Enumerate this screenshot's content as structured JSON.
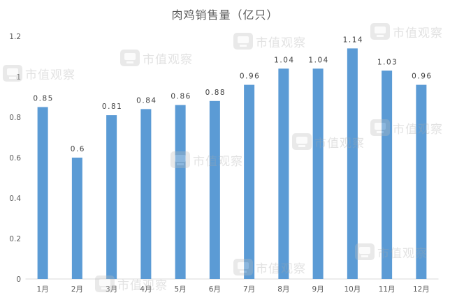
{
  "chart_data": {
    "type": "bar",
    "title": "肉鸡销售量（亿只）",
    "categories": [
      "1月",
      "2月",
      "3月",
      "4月",
      "5月",
      "6月",
      "7月",
      "8月",
      "9月",
      "10月",
      "11月",
      "12月"
    ],
    "values": [
      0.85,
      0.6,
      0.81,
      0.84,
      0.86,
      0.88,
      0.96,
      1.04,
      1.04,
      1.14,
      1.03,
      0.96
    ],
    "xlabel": "",
    "ylabel": "",
    "ylim": [
      0,
      1.2
    ],
    "yticks": [
      0,
      0.2,
      0.4,
      0.6,
      0.8,
      1,
      1.2
    ],
    "grid": false,
    "legend": "none",
    "data_labels": true,
    "bar_color": "#5b9bd5"
  },
  "watermark": {
    "text": "市值观察"
  }
}
